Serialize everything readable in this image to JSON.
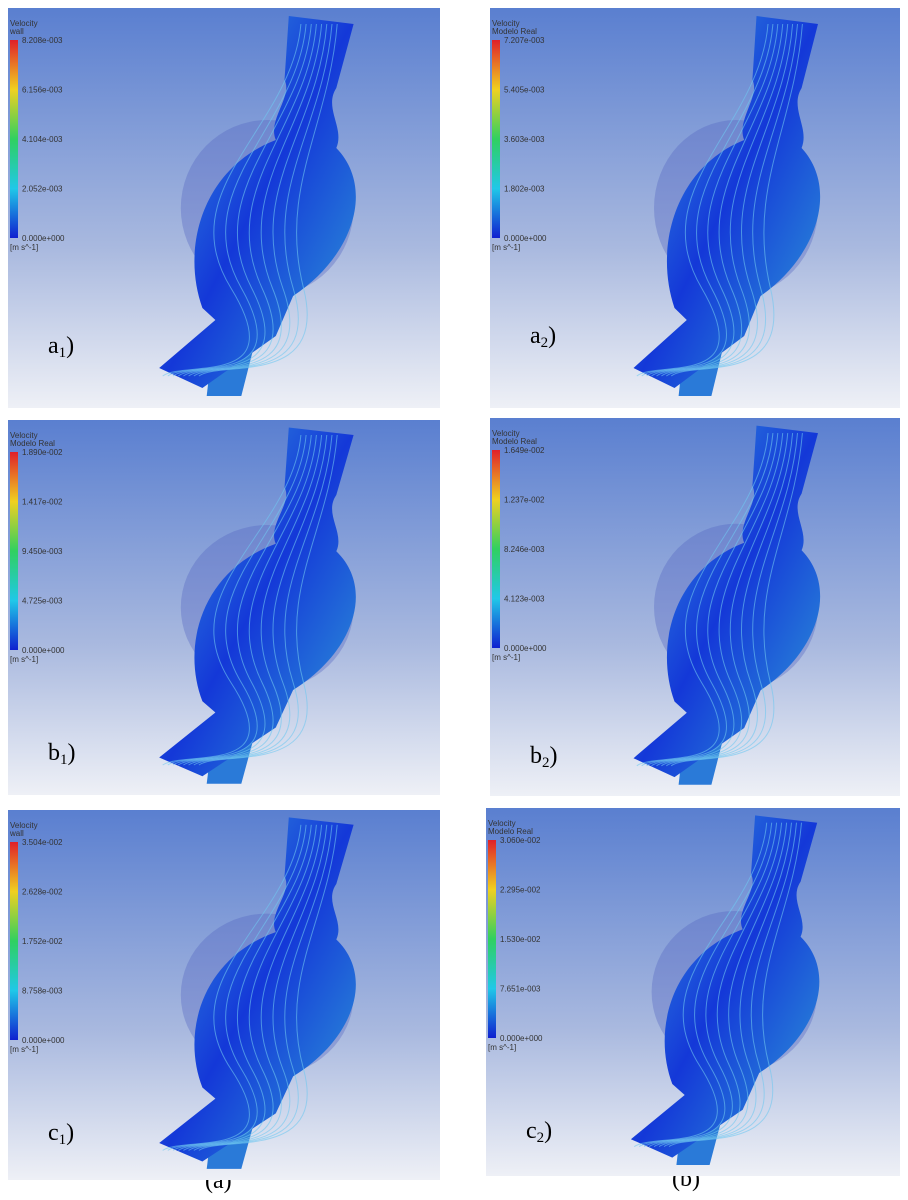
{
  "panels": [
    {
      "legend_title": [
        "Velocity",
        "wall"
      ],
      "legend_ticks": [
        "8.208e-003",
        "6.156e-003",
        "4.104e-003",
        "2.052e-003",
        "0.000e+000"
      ],
      "unit": "[m s^-1]",
      "label": [
        "a",
        "1",
        ")"
      ]
    },
    {
      "legend_title": [
        "Velocity",
        "Modelo Real"
      ],
      "legend_ticks": [
        "7.207e-003",
        "5.405e-003",
        "3.603e-003",
        "1.802e-003",
        "0.000e+000"
      ],
      "unit": "[m s^-1]",
      "label": [
        "a",
        "2",
        ")"
      ]
    },
    {
      "legend_title": [
        "Velocity",
        "Modelo Real"
      ],
      "legend_ticks": [
        "1.890e-002",
        "1.417e-002",
        "9.450e-003",
        "4.725e-003",
        "0.000e+000"
      ],
      "unit": "[m s^-1]",
      "label": [
        "b",
        "1",
        ")"
      ]
    },
    {
      "legend_title": [
        "Velocity",
        "Modelo Real"
      ],
      "legend_ticks": [
        "1.649e-002",
        "1.237e-002",
        "8.246e-003",
        "4.123e-003",
        "0.000e+000"
      ],
      "unit": "[m s^-1]",
      "label": [
        "b",
        "2",
        ")"
      ]
    },
    {
      "legend_title": [
        "Velocity",
        "wall"
      ],
      "legend_ticks": [
        "3.504e-002",
        "2.628e-002",
        "1.752e-002",
        "8.758e-003",
        "0.000e+000"
      ],
      "unit": "[m s^-1]",
      "label": [
        "c",
        "1",
        ")"
      ]
    },
    {
      "legend_title": [
        "Velocity",
        "Modelo Real"
      ],
      "legend_ticks": [
        "3.060e-002",
        "2.295e-002",
        "1.530e-002",
        "7.651e-003",
        "0.000e+000"
      ],
      "unit": "[m s^-1]",
      "label": [
        "c",
        "2",
        ")"
      ]
    }
  ],
  "captions": [
    "(a)",
    "(b)"
  ]
}
